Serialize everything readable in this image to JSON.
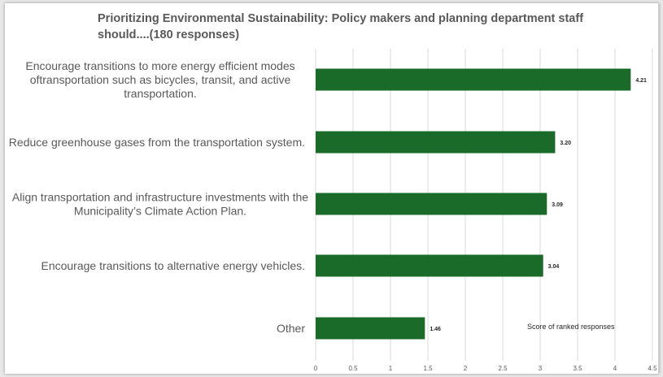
{
  "chart_data": {
    "type": "bar",
    "orientation": "horizontal",
    "title": "Prioritizing Environmental Sustainability: Policy makers and planning department staff should....(180 responses)",
    "title_lines": [
      "Prioritizing Environmental Sustainability: Policy makers and planning department staff",
      "should....(180 responses)"
    ],
    "categories": [
      "Encourage transitions to more energy efficient modes oftransportation such as bicycles, transit, and active transportation.",
      "Reduce greenhouse gases from the transportation system.",
      "Align transportation and infrastructure investments with the Municipality’s Climate Action Plan.",
      "Encourage transitions to alternative energy vehicles.",
      "Other"
    ],
    "category_lines": [
      [
        "Encourage transitions to more energy efficient modes",
        "oftransportation such as bicycles, transit, and active",
        "transportation."
      ],
      [
        "Reduce greenhouse gases from the transportation system."
      ],
      [
        "Align transportation and infrastructure investments with the",
        "Municipality’s Climate Action Plan."
      ],
      [
        "Encourage transitions to alternative energy vehicles."
      ],
      [
        "Other"
      ]
    ],
    "values": [
      4.21,
      3.2,
      3.09,
      3.04,
      1.46
    ],
    "data_labels": [
      "4.21",
      "3.20",
      "3.09",
      "3.04",
      "1.46"
    ],
    "xlim": [
      0,
      4.5
    ],
    "x_ticks": [
      "0",
      "0.5",
      "1",
      "1.5",
      "2",
      "2.5",
      "3",
      "3.5",
      "4",
      "4.5"
    ],
    "annotation": "Score of ranked responses",
    "grid": "vertical",
    "bar_color": "#1a6b2a",
    "grid_color": "#d9d9d9"
  }
}
